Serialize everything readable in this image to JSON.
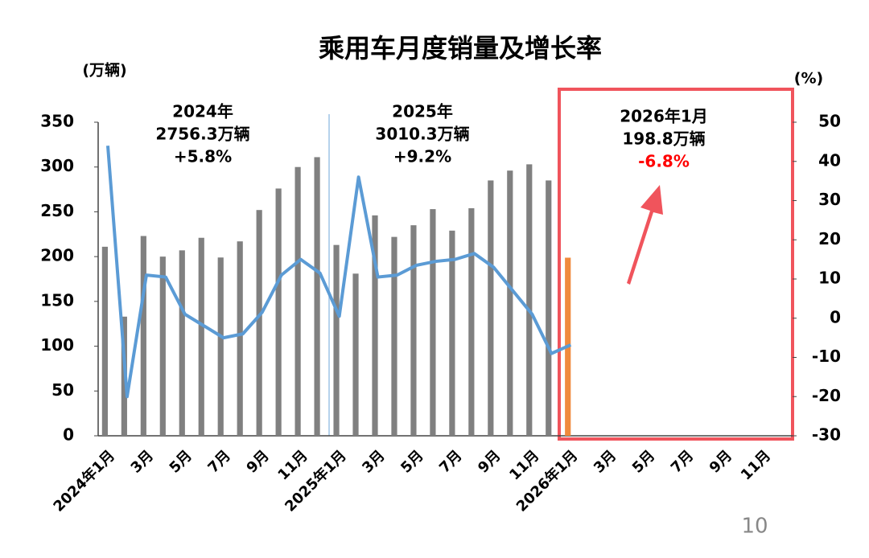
{
  "chart_data": {
    "type": "bar-line",
    "title": "乘用车月度销量及增长率",
    "y_label": "(万辆)",
    "y2_label": "(%)",
    "page_number": "10",
    "categories": [
      "2024年1月",
      null,
      "3月",
      null,
      "5月",
      null,
      "7月",
      null,
      "9月",
      null,
      "11月",
      null,
      "2025年1月",
      null,
      "3月",
      null,
      "5月",
      null,
      "7月",
      null,
      "9月",
      null,
      "11月",
      null,
      "2026年1月",
      null,
      "3月",
      null,
      "5月",
      null,
      "7月",
      null,
      "9月",
      null,
      "11月",
      null
    ],
    "series": [
      {
        "type": "bar",
        "color": "#808080",
        "colors": [
          "#808080",
          "#808080",
          "#808080",
          "#808080",
          "#808080",
          "#808080",
          "#808080",
          "#808080",
          "#808080",
          "#808080",
          "#808080",
          "#808080",
          "#808080",
          "#808080",
          "#808080",
          "#808080",
          "#808080",
          "#808080",
          "#808080",
          "#808080",
          "#808080",
          "#808080",
          "#808080",
          "#808080",
          "#f08a3c",
          "#808080",
          "#808080",
          "#808080",
          "#808080",
          "#808080",
          "#808080",
          "#808080",
          "#808080",
          "#808080",
          "#808080",
          "#808080"
        ],
        "values": [
          211,
          133,
          223,
          200,
          207,
          221,
          199,
          217,
          252,
          276,
          300,
          311,
          213,
          181,
          246,
          222,
          235,
          253,
          229,
          254,
          285,
          296,
          303,
          285,
          198.8,
          null,
          null,
          null,
          null,
          null,
          null,
          null,
          null,
          null,
          null,
          null
        ]
      },
      {
        "type": "line",
        "color": "#5b9bd5",
        "axis": "y2",
        "values": [
          44,
          -20,
          11,
          10.5,
          1,
          -2,
          -5,
          -4,
          1.5,
          11,
          15,
          11.5,
          0.5,
          36,
          10.5,
          11,
          13.5,
          14.5,
          15,
          16.5,
          13,
          7,
          1,
          -9,
          -6.8,
          null,
          null,
          null,
          null,
          null,
          null,
          null,
          null,
          null,
          null,
          null
        ]
      }
    ],
    "ylim": [
      0,
      350
    ],
    "yticks": [
      0,
      50,
      100,
      150,
      200,
      250,
      300,
      350
    ],
    "y2lim": [
      -30,
      50
    ],
    "y2ticks": [
      -30,
      -20,
      -10,
      0,
      10,
      20,
      30,
      40,
      50
    ],
    "annotations": [
      {
        "lines": [
          "2024年",
          "2756.3万辆",
          "+5.8%"
        ],
        "color": "#000000"
      },
      {
        "lines": [
          "2025年",
          "3010.3万辆",
          "+9.2%"
        ],
        "color": "#000000"
      },
      {
        "lines": [
          "2026年1月",
          "198.8万辆",
          "-6.8%"
        ],
        "color": "#000000",
        "highlight_color": "#ff0000"
      }
    ]
  }
}
